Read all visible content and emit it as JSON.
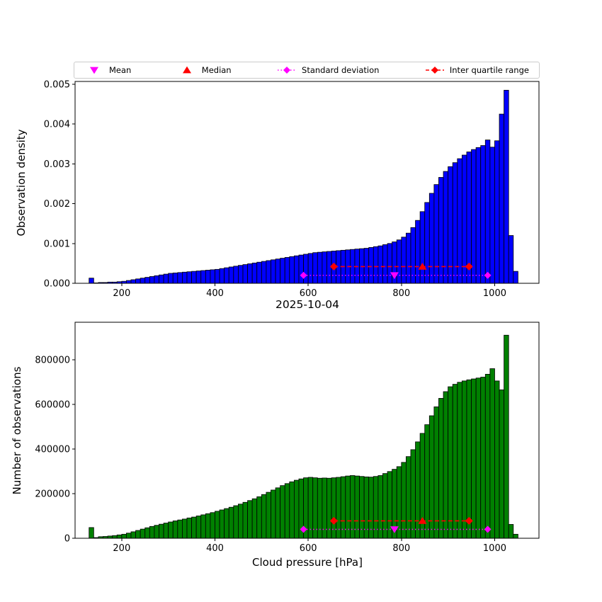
{
  "figure": {
    "title": "2025-10-04",
    "xlabel": "Cloud pressure [hPa]",
    "background": "#ffffff"
  },
  "legend": {
    "items": [
      {
        "label": "Mean",
        "marker": "triangle-down",
        "line": "none",
        "color": "#ff00ff"
      },
      {
        "label": "Median",
        "marker": "triangle-up",
        "line": "none",
        "color": "#ff0000"
      },
      {
        "label": "Standard deviation",
        "marker": "diamond",
        "line": "dotted",
        "color": "#ff00ff"
      },
      {
        "label": "Inter quartile range",
        "marker": "diamond",
        "line": "dashed",
        "color": "#ff0000"
      }
    ]
  },
  "chart_data": [
    {
      "type": "bar",
      "name": "observation-density-histogram",
      "ylabel": "Observation density",
      "bar_color": "#0000ff",
      "bar_edge_color": "#000000",
      "xlim": [
        100,
        1095
      ],
      "ylim": [
        0,
        0.00507
      ],
      "bin_start": 130,
      "bin_width": 10,
      "values": [
        0.00013,
        1e-05,
        2e-05,
        2e-05,
        3e-05,
        3e-05,
        4e-05,
        5e-05,
        7e-05,
        9e-05,
        0.00011,
        0.00013,
        0.00015,
        0.00017,
        0.00019,
        0.00021,
        0.00023,
        0.00025,
        0.00026,
        0.00027,
        0.00028,
        0.00029,
        0.0003,
        0.00031,
        0.00032,
        0.00033,
        0.00034,
        0.00035,
        0.00037,
        0.00039,
        0.00041,
        0.00043,
        0.00045,
        0.00047,
        0.00049,
        0.00051,
        0.00053,
        0.00055,
        0.00057,
        0.00059,
        0.00061,
        0.00063,
        0.00065,
        0.00067,
        0.00069,
        0.00071,
        0.00073,
        0.00075,
        0.00077,
        0.00078,
        0.00079,
        0.0008,
        0.00081,
        0.00082,
        0.00083,
        0.00084,
        0.00085,
        0.00086,
        0.00087,
        0.00088,
        0.0009,
        0.00092,
        0.00094,
        0.00097,
        0.001,
        0.00104,
        0.00109,
        0.00116,
        0.00126,
        0.0014,
        0.00158,
        0.0018,
        0.00203,
        0.00226,
        0.00248,
        0.00266,
        0.00281,
        0.00293,
        0.00303,
        0.00313,
        0.00322,
        0.0033,
        0.00336,
        0.00341,
        0.00346,
        0.0036,
        0.00342,
        0.00358,
        0.00425,
        0.00485,
        0.0012,
        0.0003
      ],
      "xtick_values": [
        200,
        400,
        600,
        800,
        1000
      ],
      "xtick_labels": [
        "200",
        "400",
        "600",
        "800",
        "1000"
      ],
      "ytick_values": [
        0,
        0.001,
        0.002,
        0.003,
        0.004,
        0.005
      ],
      "ytick_labels": [
        "0.000",
        "0.001",
        "0.002",
        "0.003",
        "0.004",
        "0.005"
      ],
      "markers": {
        "mean": {
          "x": 785,
          "y": 0.0002,
          "color": "#ff00ff"
        },
        "median": {
          "x": 845,
          "y": 0.00042,
          "color": "#ff0000"
        },
        "std": {
          "x0": 590,
          "x1": 985,
          "y": 0.0002,
          "color": "#ff00ff"
        },
        "iqr": {
          "x0": 655,
          "x1": 945,
          "y": 0.00042,
          "color": "#ff0000"
        }
      }
    },
    {
      "type": "bar",
      "name": "observation-count-histogram",
      "ylabel": "Number of observations",
      "bar_color": "#008000",
      "bar_edge_color": "#000000",
      "xlim": [
        100,
        1095
      ],
      "ylim": [
        0,
        968000
      ],
      "bin_start": 130,
      "bin_width": 10,
      "values": [
        48000,
        3000,
        7000,
        8000,
        10000,
        12000,
        15000,
        18000,
        23000,
        29000,
        35000,
        41000,
        47000,
        53000,
        58000,
        63000,
        68000,
        73000,
        78000,
        82000,
        86000,
        91000,
        95000,
        100000,
        105000,
        110000,
        115000,
        121000,
        127000,
        133000,
        139000,
        146000,
        153000,
        161000,
        169000,
        177000,
        186000,
        196000,
        206000,
        216000,
        226000,
        236000,
        245000,
        253000,
        260000,
        266000,
        271000,
        273000,
        271000,
        269000,
        270000,
        269000,
        271000,
        273000,
        276000,
        279000,
        281000,
        279000,
        277000,
        275000,
        274000,
        277000,
        281000,
        290000,
        299000,
        309000,
        321000,
        340000,
        366000,
        397000,
        432000,
        470000,
        509000,
        549000,
        589000,
        627000,
        657000,
        679000,
        690000,
        699000,
        705000,
        710000,
        714000,
        718000,
        722000,
        735000,
        760000,
        705000,
        665000,
        910000,
        62000,
        18000
      ],
      "xtick_values": [
        200,
        400,
        600,
        800,
        1000
      ],
      "xtick_labels": [
        "200",
        "400",
        "600",
        "800",
        "1000"
      ],
      "ytick_values": [
        0,
        200000,
        400000,
        600000,
        800000
      ],
      "ytick_labels": [
        "0",
        "200000",
        "400000",
        "600000",
        "800000"
      ],
      "markers": {
        "mean": {
          "x": 785,
          "y": 40000,
          "color": "#ff00ff"
        },
        "median": {
          "x": 845,
          "y": 78000,
          "color": "#ff0000"
        },
        "std": {
          "x0": 590,
          "x1": 985,
          "y": 40000,
          "color": "#ff00ff"
        },
        "iqr": {
          "x0": 655,
          "x1": 945,
          "y": 78000,
          "color": "#ff0000"
        }
      }
    }
  ]
}
